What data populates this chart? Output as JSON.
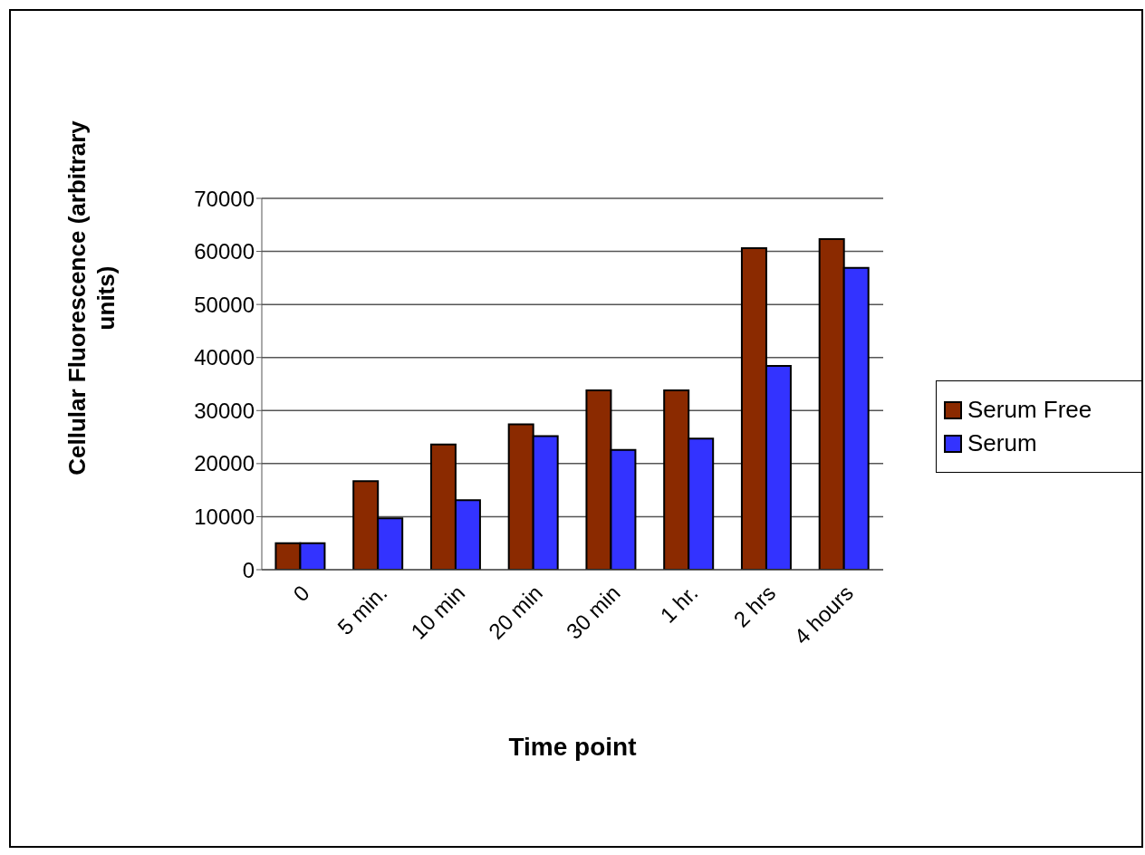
{
  "chart_data": {
    "type": "bar",
    "xlabel": "Time point",
    "ylabel": "Cellular Fluorescence (arbitrary units)",
    "categories": [
      "0",
      "5 min.",
      "10 min",
      "20 min",
      "30 min",
      "1 hr.",
      "2 hrs",
      "4 hours"
    ],
    "series": [
      {
        "name": "Serum Free",
        "color": "#8b2a00",
        "values": [
          5000,
          16700,
          23600,
          27400,
          33800,
          33800,
          60600,
          62300
        ]
      },
      {
        "name": "Serum",
        "color": "#3333ff",
        "values": [
          5000,
          9700,
          13100,
          25200,
          22600,
          24700,
          38400,
          56900
        ]
      }
    ],
    "ylim": [
      0,
      70000
    ],
    "yticks": [
      0,
      10000,
      20000,
      30000,
      40000,
      50000,
      60000,
      70000
    ],
    "grid": "y",
    "legend": "right"
  }
}
